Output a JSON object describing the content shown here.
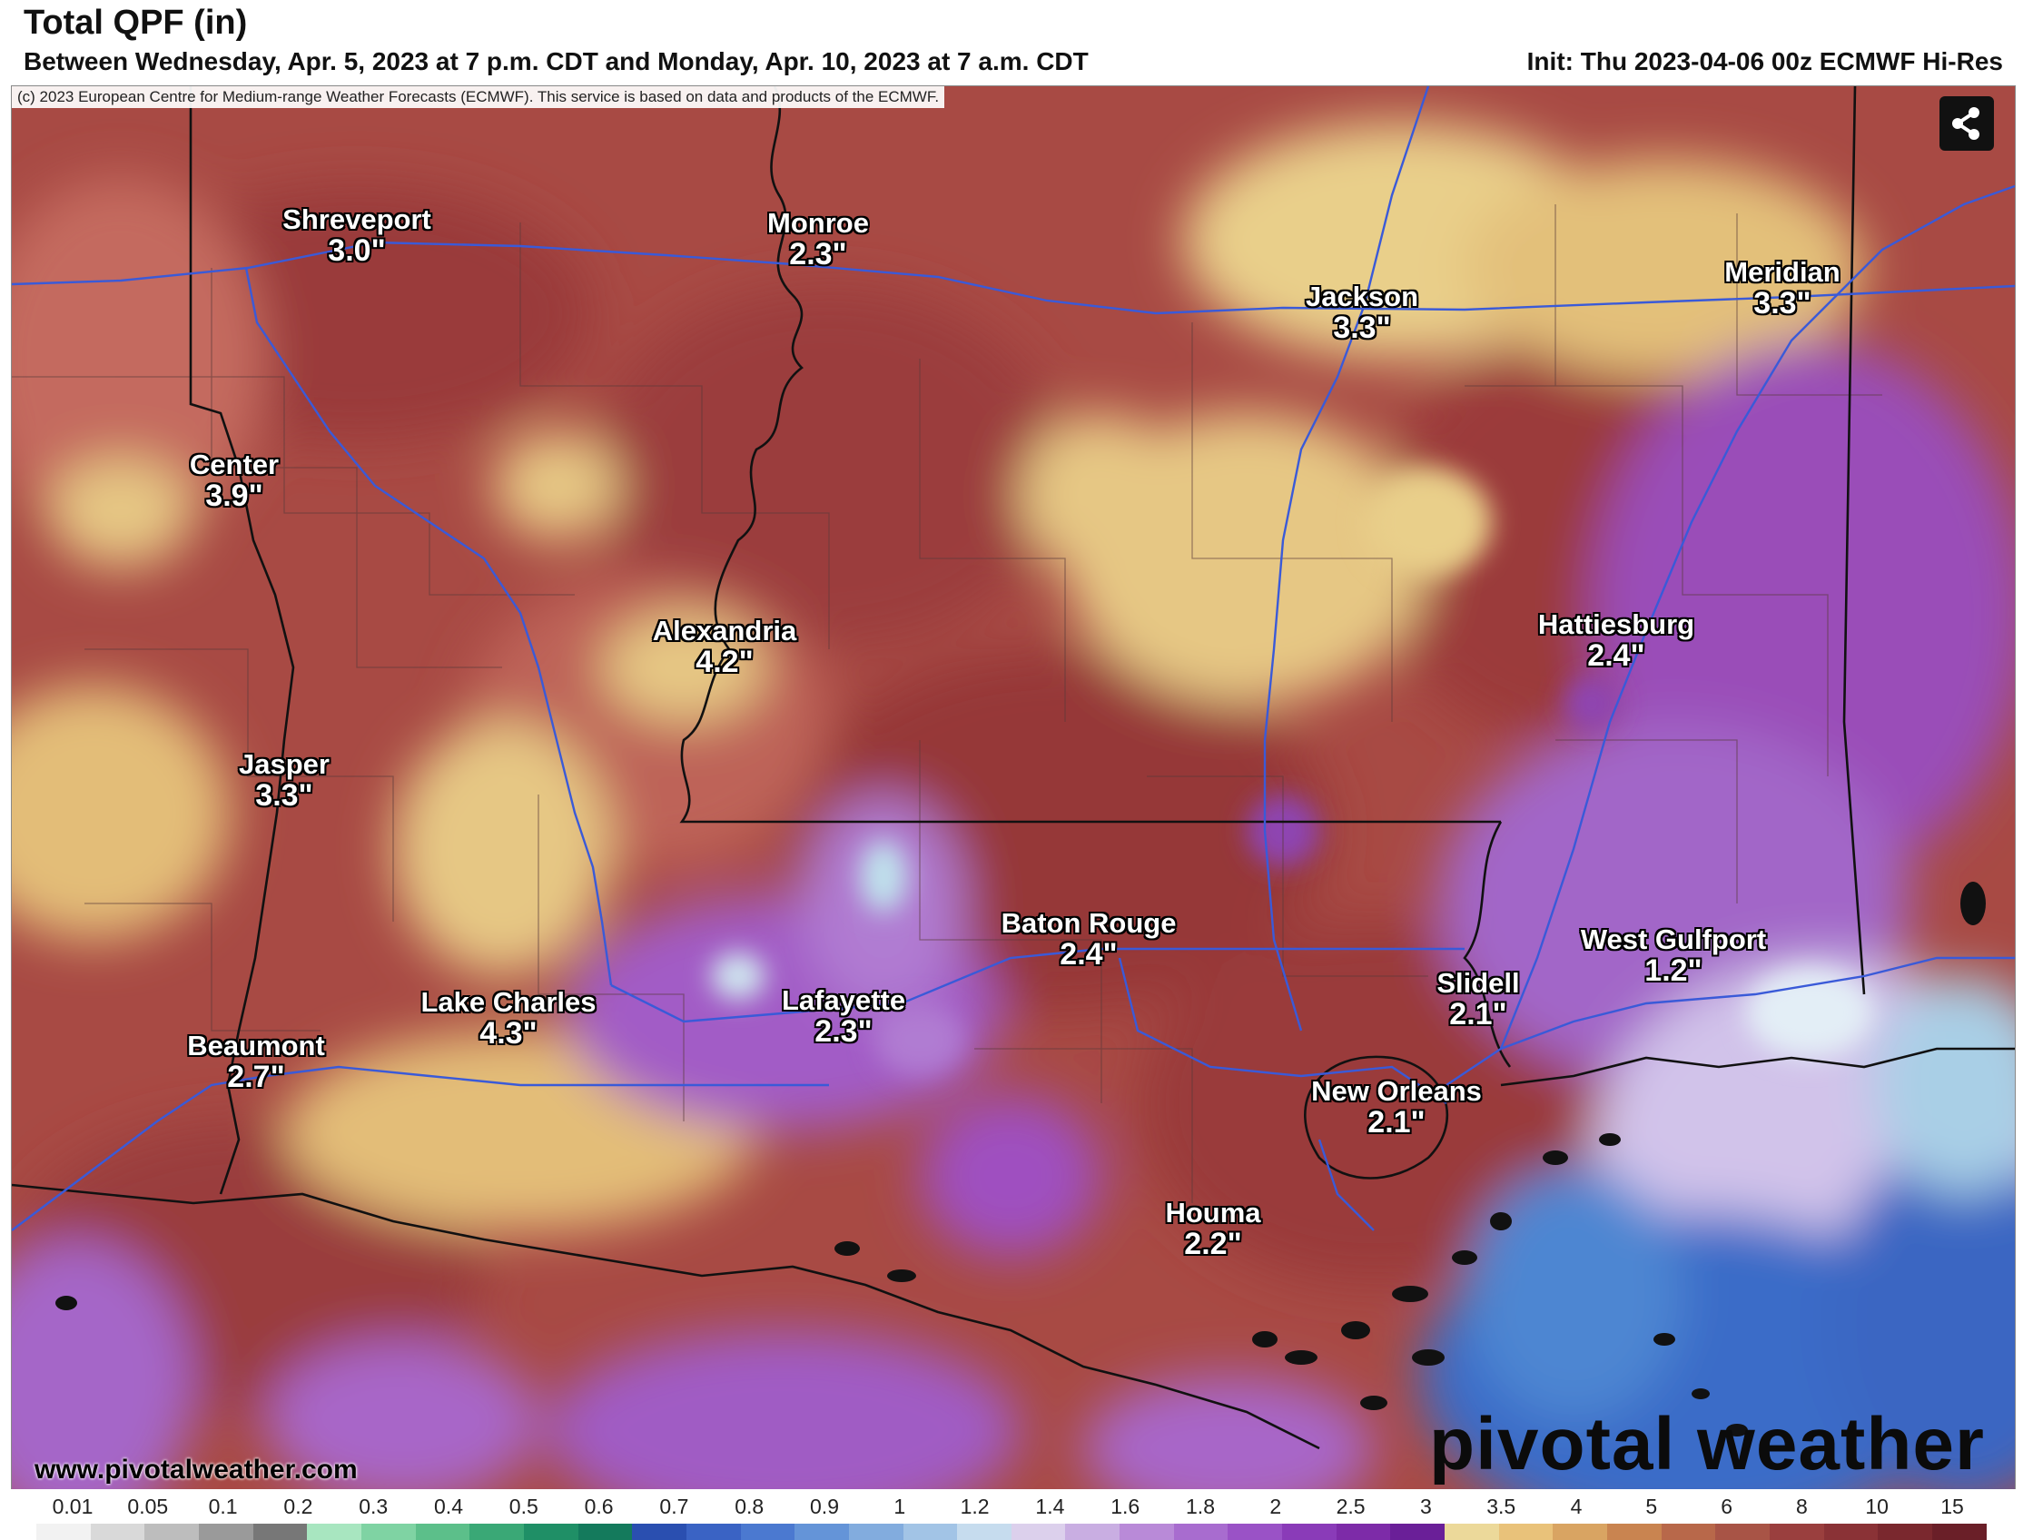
{
  "header": {
    "title": "Total QPF (in)",
    "subtitle": "Between Wednesday, Apr. 5, 2023 at 7 p.m. CDT and Monday, Apr. 10, 2023 at 7 a.m. CDT",
    "init": "Init: Thu 2023-04-06 00z ECMWF Hi-Res"
  },
  "map": {
    "copyright": "(c) 2023 European Centre for Medium-range Weather Forecasts (ECMWF). This service is based on data and products of the ECMWF.",
    "share_icon": "share-icon",
    "cities": [
      {
        "name": "Shreveport",
        "value": "3.0\""
      },
      {
        "name": "Monroe",
        "value": "2.3\""
      },
      {
        "name": "Jackson",
        "value": "3.3\""
      },
      {
        "name": "Meridian",
        "value": "3.3\""
      },
      {
        "name": "Center",
        "value": "3.9\""
      },
      {
        "name": "Alexandria",
        "value": "4.2\""
      },
      {
        "name": "Hattiesburg",
        "value": "2.4\""
      },
      {
        "name": "Jasper",
        "value": "3.3\""
      },
      {
        "name": "Baton Rouge",
        "value": "2.4\""
      },
      {
        "name": "West Gulfport",
        "value": "1.2\""
      },
      {
        "name": "Lake Charles",
        "value": "4.3\""
      },
      {
        "name": "Lafayette",
        "value": "2.3\""
      },
      {
        "name": "Slidell",
        "value": "2.1\""
      },
      {
        "name": "Beaumont",
        "value": "2.7\""
      },
      {
        "name": "New Orleans",
        "value": "2.1\""
      },
      {
        "name": "Houma",
        "value": "2.2\""
      }
    ]
  },
  "footer": {
    "website": "www.pivotalweather.com",
    "logo": "pivotal weather"
  },
  "legend": {
    "labels": [
      "0.01",
      "0.05",
      "0.1",
      "0.2",
      "0.3",
      "0.4",
      "0.5",
      "0.6",
      "0.7",
      "0.8",
      "0.9",
      "1",
      "1.2",
      "1.4",
      "1.6",
      "1.8",
      "2",
      "2.5",
      "3",
      "3.5",
      "4",
      "5",
      "6",
      "8",
      "10",
      "15"
    ],
    "colors": [
      "#f2f2f2",
      "#d9d9d9",
      "#bdbdbd",
      "#9a9a9a",
      "#777777",
      "#a8e6c0",
      "#7fd3a3",
      "#5cbf8a",
      "#3aa876",
      "#1f8f66",
      "#147a5c",
      "#2a4fb0",
      "#3a63c4",
      "#4b79d0",
      "#6494d8",
      "#82acde",
      "#a2c4e6",
      "#c6dcee",
      "#dcd0ec",
      "#c9aee2",
      "#b98ad8",
      "#a86ccf",
      "#9a52c6",
      "#8a3bb8",
      "#7d2ba8",
      "#6a1f98",
      "#ecd99a",
      "#e9c27a",
      "#d9a462",
      "#c98450",
      "#b8684a",
      "#a85446",
      "#9a3f3e",
      "#8a3236",
      "#7a282e",
      "#6a1f28"
    ]
  }
}
